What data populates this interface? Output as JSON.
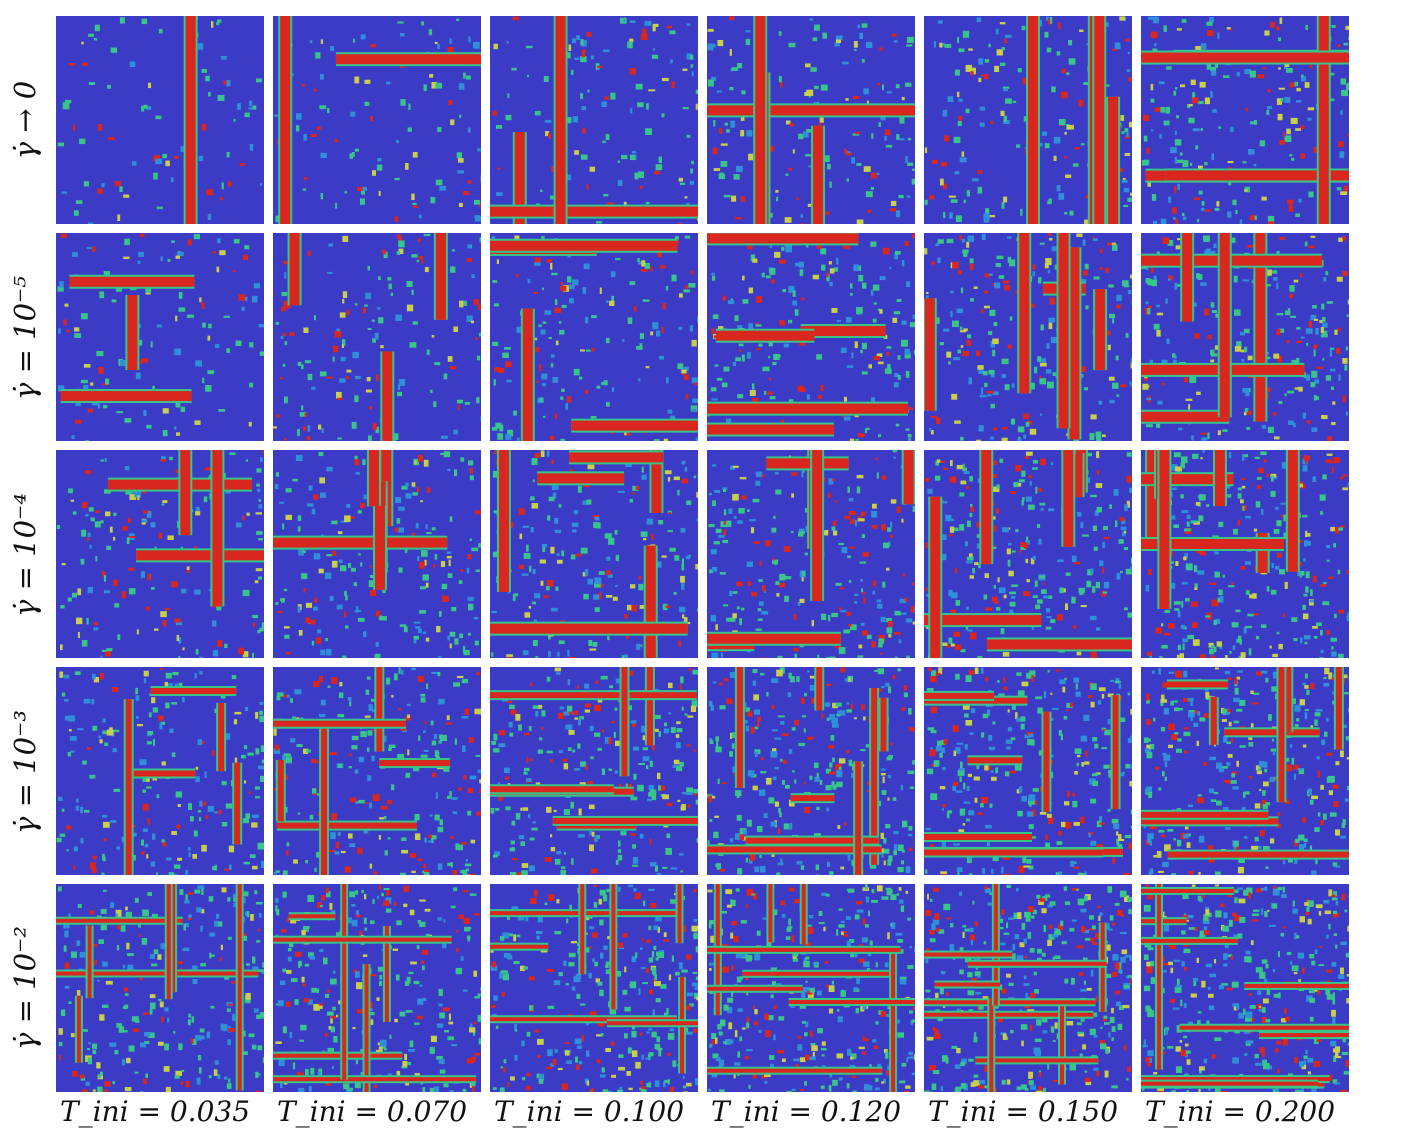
{
  "figure": {
    "row_labels": [
      "γ̇ → 0",
      "γ̇ = 10⁻⁵",
      "γ̇ = 10⁻⁴",
      "γ̇ = 10⁻³",
      "γ̇ = 10⁻²"
    ],
    "col_labels": [
      "T_ini = 0.035",
      "T_ini = 0.070",
      "T_ini = 0.100",
      "T_ini = 0.120",
      "T_ini = 0.150",
      "T_ini = 0.200"
    ],
    "colormap": {
      "low": "#3b3bc6",
      "mid_low": "#2f8fd8",
      "mid": "#38c58a",
      "mid_high": "#c8d04a",
      "high": "#d9261e"
    },
    "panel_description": "snapshots of particle-level field, red bands indicate localized strain"
  }
}
